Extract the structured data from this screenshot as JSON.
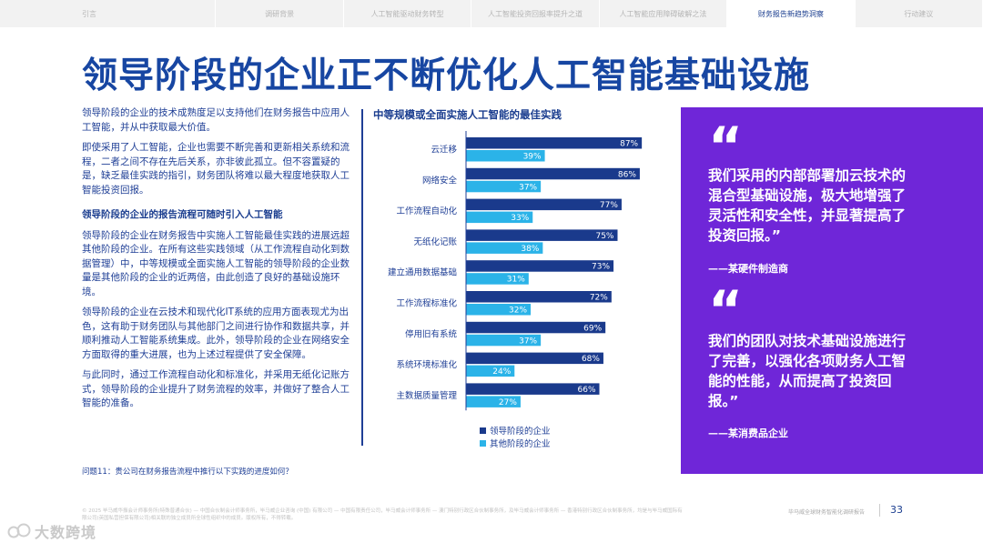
{
  "nav": {
    "tabs": [
      {
        "label": "引言",
        "active": false
      },
      {
        "label": "调研背景",
        "active": false
      },
      {
        "label": "人工智能驱动财务转型",
        "active": false
      },
      {
        "label": "人工智能投资回报率提升之道",
        "active": false
      },
      {
        "label": "人工智能应用障碍破解之法",
        "active": false
      },
      {
        "label": "财务报告新趋势洞察",
        "active": true
      },
      {
        "label": "行动建议",
        "active": false
      }
    ]
  },
  "page": {
    "title": "领导阶段的企业正不断优化人工智能基础设施"
  },
  "body": {
    "p1": "领导阶段的企业的技术成熟度足以支持他们在财务报告中应用人工智能，并从中获取最大价值。",
    "p2": "即使采用了人工智能，企业也需要不断完善和更新相关系统和流程，二者之间不存在先后关系，亦非彼此孤立。但不容置疑的是，缺乏最佳实践的指引，财务团队将难以最大程度地获取人工智能投资回报。",
    "heading": "领导阶段的企业的报告流程可随时引入人工智能",
    "p3": "领导阶段的企业在财务报告中实施人工智能最佳实践的进展远超其他阶段的企业。在所有这些实践领域（从工作流程自动化到数据管理）中，中等规模或全面实施人工智能的领导阶段的企业数量是其他阶段的企业的近两倍，由此创造了良好的基础设施环境。",
    "p4": "领导阶段的企业在云技术和现代化IT系统的应用方面表现尤为出色，这有助于财务团队与其他部门之间进行协作和数据共享，并顺利推动人工智能系统集成。此外，领导阶段的企业在网络安全方面取得的重大进展，也为上述过程提供了安全保障。",
    "p5": "与此同时，通过工作流程自动化和标准化，并采用无纸化记账方式，领导阶段的企业提升了财务流程的效率，并做好了整合人工智能的准备。"
  },
  "chart_data": {
    "type": "bar",
    "orientation": "horizontal",
    "title": "中等规模或全面实施人工智能的最佳实践",
    "categories": [
      "云迁移",
      "网络安全",
      "工作流程自动化",
      "无纸化记账",
      "建立通用数据基础",
      "工作流程标准化",
      "停用旧有系统",
      "系统环境标准化",
      "主数据质量管理"
    ],
    "series": [
      {
        "name": "领导阶段的企业",
        "color": "#1a3a8c",
        "values": [
          87,
          86,
          77,
          75,
          73,
          72,
          69,
          68,
          66
        ]
      },
      {
        "name": "其他阶段的企业",
        "color": "#2bb3e8",
        "values": [
          39,
          37,
          33,
          38,
          31,
          32,
          37,
          24,
          27
        ]
      }
    ],
    "value_suffix": "%",
    "xlim": [
      0,
      100
    ],
    "legend_position": "bottom"
  },
  "question": "问题11：贵公司在财务报告流程中推行以下实践的进度如何？",
  "quotes": [
    {
      "mark": "“",
      "text": "我们采用的内部部署加云技术的混合型基础设施，极大地增强了灵活性和安全性，并显著提高了投资回报。”",
      "source": "——某硬件制造商"
    },
    {
      "mark": "“",
      "text": "我们的团队对技术基础设施进行了完善，以强化各项财务人工智能的性能，从而提高了投资回报。”",
      "source": "——某消费品企业"
    }
  ],
  "footer": {
    "disclaimer": "© 2025 毕马威华振会计师事务所(特殊普通合伙) — 中国合伙制会计师事务所，毕马威企业咨询 (中国) 有限公司 — 中国有限责任公司，毕马威会计师事务所 — 澳门特别行政区合伙制事务所，及毕马威会计师事务所 — 香港特别行政区合伙制事务所，均是与毕马威国际有限公司(英国私营担保有限公司)相关联的独立成员所全球性组织中的成员。版权所有，不得转载。",
    "report_name": "毕马威全球财务智能化调研报告",
    "page_number": "33"
  },
  "watermark": {
    "text": "大数跨境"
  },
  "colors": {
    "title": "#1746a2",
    "primary_bar": "#1a3a8c",
    "secondary_bar": "#2bb3e8",
    "quote_bg": "#6f26d8"
  }
}
